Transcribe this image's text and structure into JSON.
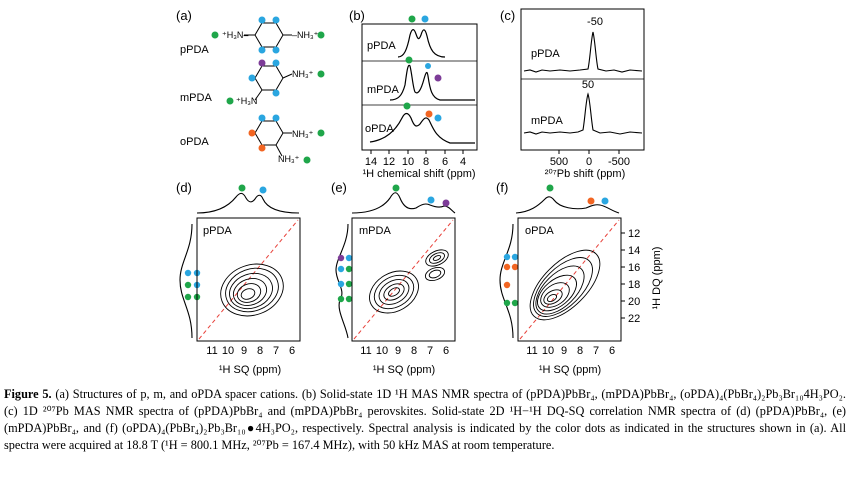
{
  "panels": {
    "a": {
      "label": "(a)",
      "species": [
        "pPDA",
        "mPDA",
        "oPDA"
      ]
    },
    "b": {
      "label": "(b)",
      "traces": [
        "pPDA",
        "mPDA",
        "oPDA"
      ],
      "xticks": [
        "14",
        "12",
        "10",
        "8",
        "6",
        "4"
      ],
      "xlabel": "¹H chemical shift (ppm)"
    },
    "c": {
      "label": "(c)",
      "traces": [
        "pPDA",
        "mPDA"
      ],
      "peaks": [
        "-50",
        "50"
      ],
      "xticks": [
        "500",
        "0",
        "-500"
      ],
      "xlabel": "²⁰⁷Pb shift (ppm)"
    },
    "d": {
      "label": "(d)",
      "name": "pPDA",
      "xticks": [
        "11",
        "10",
        "9",
        "8",
        "7",
        "6"
      ],
      "xlabel": "¹H SQ (ppm)"
    },
    "e": {
      "label": "(e)",
      "name": "mPDA",
      "xticks": [
        "11",
        "10",
        "9",
        "8",
        "7",
        "6"
      ],
      "xlabel": "¹H SQ (ppm)"
    },
    "f": {
      "label": "(f)",
      "name": "oPDA",
      "xticks": [
        "11",
        "10",
        "9",
        "8",
        "7",
        "6"
      ],
      "xlabel": "¹H SQ (ppm)",
      "yticks": [
        "12",
        "14",
        "16",
        "18",
        "20",
        "22"
      ],
      "ylabel": "¹H DQ (ppm)"
    }
  },
  "colors": {
    "green": "#1fa64a",
    "blue": "#2aa6e0",
    "purple": "#7d3c98",
    "orange": "#f26522",
    "diag": "#e8413a"
  },
  "caption": {
    "label": "Figure 5.",
    "text": "(a) Structures of p, m, and oPDA spacer cations. (b) Solid-state 1D ¹H MAS NMR spectra of (pPDA)PbBr₄, (mPDA)PbBr₄, (oPDA)₄(PbBr₄)₂Pb₃Br₁₀4H₃PO₂. (c) 1D ²⁰⁷Pb MAS NMR spectra of (pPDA)PbBr₄ and (mPDA)PbBr₄ perovskites. Solid-state 2D ¹H−¹H DQ-SQ correlation NMR spectra of (d) (pPDA)PbBr₄, (e) (mPDA)PbBr₄, and (f) (oPDA)₄(PbBr₄)₂Pb₃Br₁₀●4H₃PO₂, respectively. Spectral analysis is indicated by the color dots as indicated in the structures shown in (a). All spectra were acquired at 18.8 T (¹H = 800.1 MHz, ²⁰⁷Pb = 167.4 MHz), with 50 kHz MAS at room temperature."
  }
}
